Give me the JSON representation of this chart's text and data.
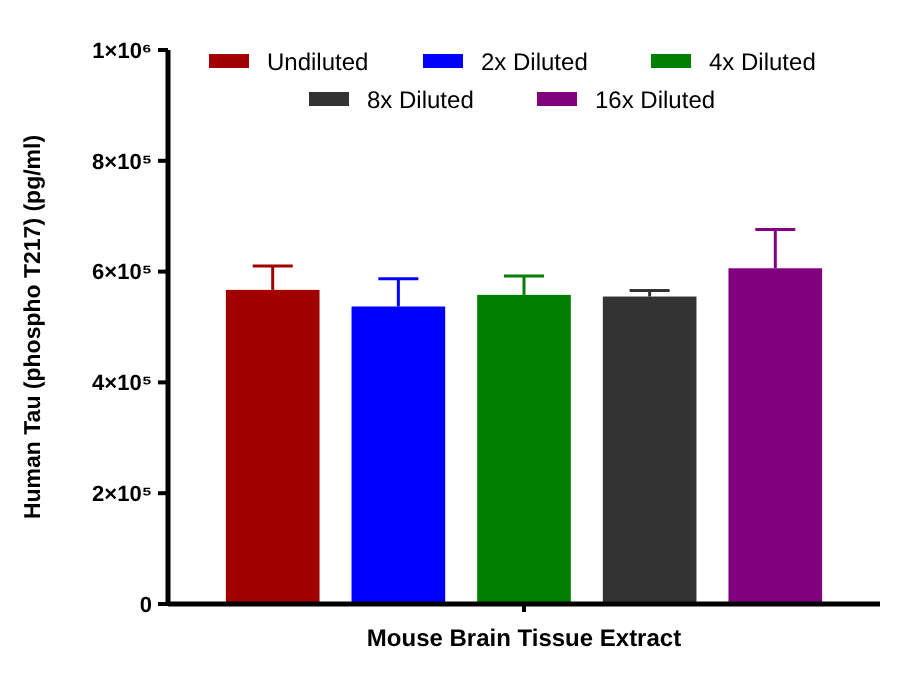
{
  "chart_data": {
    "type": "bar",
    "xlabel": "Mouse Brain Tissue Extract",
    "ylabel": "Human Tau (phospho T217) (pg/ml)",
    "categories": [
      null
    ],
    "series": [
      {
        "name": "Undiluted",
        "color": "#a00000",
        "values": [
          567000
        ],
        "errors": [
          [
            567000,
            610000
          ]
        ]
      },
      {
        "name": "2x Diluted",
        "color": "#0000ff",
        "values": [
          537000
        ],
        "errors": [
          [
            537000,
            587000
          ]
        ]
      },
      {
        "name": "4x Diluted",
        "color": "#008000",
        "values": [
          558000
        ],
        "errors": [
          [
            558000,
            592000
          ]
        ]
      },
      {
        "name": "8x Diluted",
        "color": "#333333",
        "values": [
          555000
        ],
        "errors": [
          [
            555000,
            566000
          ]
        ]
      },
      {
        "name": "16x Diluted",
        "color": "#800080",
        "values": [
          606000
        ],
        "errors": [
          [
            606000,
            676000
          ]
        ]
      }
    ],
    "ylim": [
      0,
      1000000
    ],
    "yticks": [
      {
        "value": 0,
        "label": "0"
      },
      {
        "value": 200000,
        "label": "2×10⁵"
      },
      {
        "value": 400000,
        "label": "4×10⁵"
      },
      {
        "value": 600000,
        "label": "6×10⁵"
      },
      {
        "value": 800000,
        "label": "8×10⁵"
      },
      {
        "value": 1000000,
        "label": "1×10⁶"
      }
    ],
    "grid": false,
    "legend": "top"
  }
}
